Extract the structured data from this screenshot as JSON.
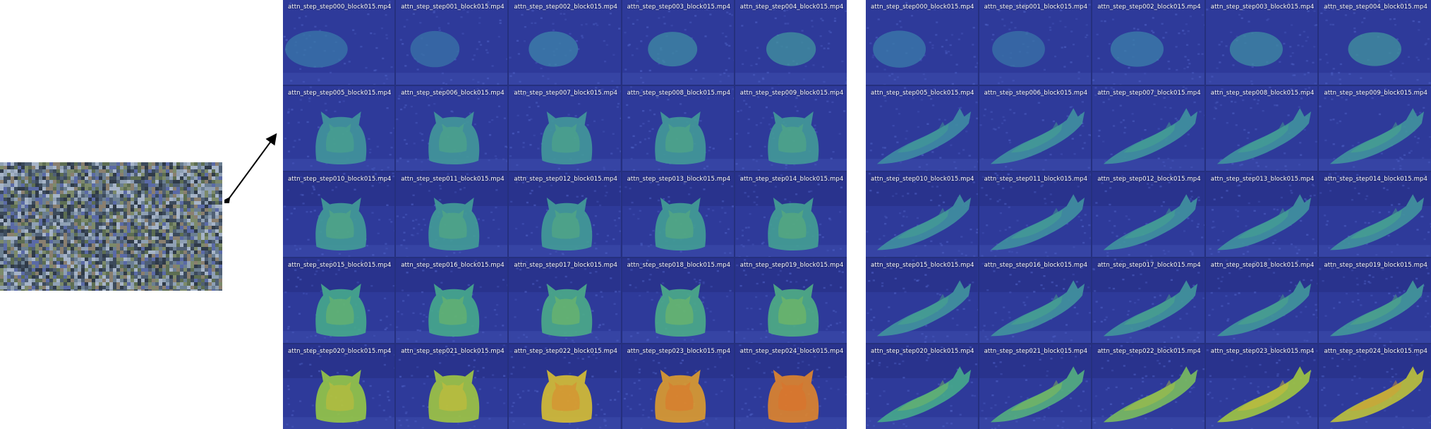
{
  "input_noise": {
    "title": "",
    "palette": [
      "#4f5f74",
      "#6b7f92",
      "#8fa0b4",
      "#3c4a5b",
      "#5d6e52",
      "#7c8a6a",
      "#5a6aa6",
      "#8a7f6f",
      "#2f3a48",
      "#a6b4c8"
    ]
  },
  "colors": {
    "background": "#ffffff",
    "grid_bg": "#25307e",
    "tile_base": "#2e3a9a",
    "label_text": "#ffffff",
    "arrow": "#000000"
  },
  "attention_grids": [
    {
      "id": "left",
      "subject": "cat",
      "tiles": [
        {
          "label": "attn_step_step000_block015.mp4",
          "activation": 0.3
        },
        {
          "label": "attn_step_step001_block015.mp4",
          "activation": 0.28
        },
        {
          "label": "attn_step_step002_block015.mp4",
          "activation": 0.36
        },
        {
          "label": "attn_step_step003_block015.mp4",
          "activation": 0.4
        },
        {
          "label": "attn_step_step004_block015.mp4",
          "activation": 0.44
        },
        {
          "label": "attn_step_step005_block015.mp4",
          "activation": 0.45
        },
        {
          "label": "attn_step_step006_block015.mp4",
          "activation": 0.46
        },
        {
          "label": "attn_step_step007_block015.mp4",
          "activation": 0.46
        },
        {
          "label": "attn_step_step008_block015.mp4",
          "activation": 0.47
        },
        {
          "label": "attn_step_step009_block015.mp4",
          "activation": 0.47
        },
        {
          "label": "attn_step_step010_block015.mp4",
          "activation": 0.48
        },
        {
          "label": "attn_step_step011_block015.mp4",
          "activation": 0.48
        },
        {
          "label": "attn_step_step012_block015.mp4",
          "activation": 0.48
        },
        {
          "label": "attn_step_step013_block015.mp4",
          "activation": 0.49
        },
        {
          "label": "attn_step_step014_block015.mp4",
          "activation": 0.5
        },
        {
          "label": "attn_step_step015_block015.mp4",
          "activation": 0.55
        },
        {
          "label": "attn_step_step016_block015.mp4",
          "activation": 0.55
        },
        {
          "label": "attn_step_step017_block015.mp4",
          "activation": 0.56
        },
        {
          "label": "attn_step_step018_block015.mp4",
          "activation": 0.56
        },
        {
          "label": "attn_step_step019_block015.mp4",
          "activation": 0.57
        },
        {
          "label": "attn_step_step020_block015.mp4",
          "activation": 0.72
        },
        {
          "label": "attn_step_step021_block015.mp4",
          "activation": 0.74
        },
        {
          "label": "attn_step_step022_block015.mp4",
          "activation": 0.85
        },
        {
          "label": "attn_step_step023_block015.mp4",
          "activation": 0.92
        },
        {
          "label": "attn_step_step024_block015.mp4",
          "activation": 0.96
        }
      ]
    },
    {
      "id": "right",
      "subject": "cat-walking",
      "tiles": [
        {
          "label": "attn_step_step000_block015.mp4",
          "activation": 0.32
        },
        {
          "label": "attn_step_step001_block015.mp4",
          "activation": 0.28
        },
        {
          "label": "attn_step_step002_block015.mp4",
          "activation": 0.34
        },
        {
          "label": "attn_step_step003_block015.mp4",
          "activation": 0.4
        },
        {
          "label": "attn_step_step004_block015.mp4",
          "activation": 0.44
        },
        {
          "label": "attn_step_step005_block015.mp4",
          "activation": 0.4
        },
        {
          "label": "attn_step_step006_block015.mp4",
          "activation": 0.42
        },
        {
          "label": "attn_step_step007_block015.mp4",
          "activation": 0.43
        },
        {
          "label": "attn_step_step008_block015.mp4",
          "activation": 0.43
        },
        {
          "label": "attn_step_step009_block015.mp4",
          "activation": 0.44
        },
        {
          "label": "attn_step_step010_block015.mp4",
          "activation": 0.42
        },
        {
          "label": "attn_step_step011_block015.mp4",
          "activation": 0.42
        },
        {
          "label": "attn_step_step012_block015.mp4",
          "activation": 0.43
        },
        {
          "label": "attn_step_step013_block015.mp4",
          "activation": 0.43
        },
        {
          "label": "attn_step_step014_block015.mp4",
          "activation": 0.44
        },
        {
          "label": "attn_step_step015_block015.mp4",
          "activation": 0.44
        },
        {
          "label": "attn_step_step016_block015.mp4",
          "activation": 0.44
        },
        {
          "label": "attn_step_step017_block015.mp4",
          "activation": 0.45
        },
        {
          "label": "attn_step_step018_block015.mp4",
          "activation": 0.45
        },
        {
          "label": "attn_step_step019_block015.mp4",
          "activation": 0.46
        },
        {
          "label": "attn_step_step020_block015.mp4",
          "activation": 0.55
        },
        {
          "label": "attn_step_step021_block015.mp4",
          "activation": 0.58
        },
        {
          "label": "attn_step_step022_block015.mp4",
          "activation": 0.66
        },
        {
          "label": "attn_step_step023_block015.mp4",
          "activation": 0.74
        },
        {
          "label": "attn_step_step024_block015.mp4",
          "activation": 0.8
        }
      ]
    }
  ]
}
